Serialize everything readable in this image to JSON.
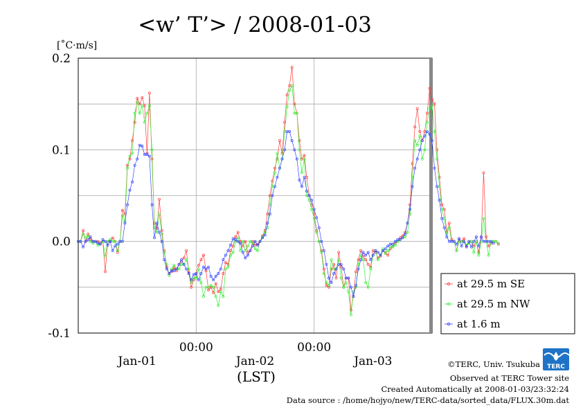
{
  "chart_data": {
    "type": "line",
    "title": "<w’ T’> / 2008-01-03",
    "unit_label": "[˚C·m/s]",
    "xlabel": "(LST)",
    "ylim": [
      -0.1,
      0.2
    ],
    "yticks": [
      "0.2",
      "0.1",
      "0.0",
      "-0.1"
    ],
    "xlim": [
      -36,
      36
    ],
    "xticks_time": [
      "00:00",
      "00:00"
    ],
    "xticks_date": [
      "Jan-01",
      "Jan-02",
      "Jan-03"
    ],
    "grid": true,
    "legend_position": "bottom-right outside",
    "x_step_hours": 0.5,
    "x_start_hour": -36,
    "series": [
      {
        "name": "at 29.5 m SE",
        "color": "#ff3b3b",
        "values": [
          0.0,
          0.0,
          0.012,
          0.0,
          0.008,
          0.002,
          0.0,
          0.0,
          0.0,
          -0.002,
          0.0,
          -0.033,
          0.0,
          0.0,
          0.004,
          0.0,
          -0.012,
          0.0,
          0.034,
          0.03,
          0.083,
          0.09,
          0.11,
          0.13,
          0.156,
          0.15,
          0.157,
          0.148,
          0.096,
          0.162,
          0.09,
          0.02,
          0.014,
          0.046,
          0.012,
          -0.01,
          -0.028,
          -0.035,
          -0.033,
          -0.029,
          -0.032,
          -0.025,
          -0.022,
          -0.018,
          -0.01,
          -0.034,
          -0.05,
          -0.042,
          -0.035,
          -0.026,
          -0.02,
          -0.015,
          -0.032,
          -0.053,
          -0.05,
          -0.056,
          -0.046,
          -0.055,
          -0.052,
          -0.035,
          -0.023,
          -0.025,
          -0.01,
          -0.005,
          0.005,
          0.01,
          0.0,
          -0.005,
          0.0,
          -0.012,
          -0.01,
          0.0,
          -0.004,
          -0.003,
          0.0,
          0.006,
          0.012,
          0.03,
          0.05,
          0.066,
          0.08,
          0.09,
          0.11,
          0.096,
          0.13,
          0.16,
          0.17,
          0.19,
          0.15,
          0.14,
          0.11,
          0.09,
          0.094,
          0.07,
          0.05,
          0.04,
          0.03,
          0.012,
          0.0,
          -0.01,
          -0.03,
          -0.048,
          -0.05,
          -0.03,
          -0.025,
          -0.04,
          -0.012,
          -0.028,
          -0.05,
          -0.04,
          -0.04,
          -0.075,
          -0.06,
          -0.033,
          -0.02,
          -0.01,
          -0.016,
          -0.02,
          -0.025,
          -0.028,
          -0.01,
          -0.012,
          -0.018,
          -0.016,
          -0.01,
          -0.012,
          -0.015,
          -0.008,
          -0.006,
          -0.002,
          0.0,
          0.004,
          0.006,
          0.01,
          0.02,
          0.04,
          0.085,
          0.125,
          0.145,
          0.12,
          0.11,
          0.12,
          0.14,
          0.167,
          0.155,
          0.15,
          0.1,
          0.07,
          0.04,
          0.035,
          0.01,
          0.02,
          0.002,
          0.0,
          -0.01,
          0.003,
          0.0,
          0.003,
          -0.005,
          0.0,
          0.0,
          -0.005,
          0.0,
          -0.012,
          0.005,
          0.075,
          0.005,
          -0.005,
          -0.002,
          0.0,
          0.0,
          -0.003
        ]
      },
      {
        "name": "at 29.5 m NW",
        "color": "#33ee33",
        "values": [
          0.0,
          0.0,
          0.008,
          0.004,
          0.006,
          0.0,
          -0.002,
          0.0,
          -0.004,
          -0.003,
          0.0,
          -0.016,
          0.0,
          0.002,
          0.0,
          0.0,
          -0.01,
          0.0,
          0.028,
          0.022,
          0.08,
          0.093,
          0.096,
          0.14,
          0.152,
          0.14,
          0.148,
          0.13,
          0.14,
          0.148,
          0.1,
          0.015,
          0.01,
          0.03,
          0.008,
          -0.012,
          -0.025,
          -0.037,
          -0.03,
          -0.026,
          -0.03,
          -0.03,
          -0.025,
          -0.025,
          -0.02,
          -0.03,
          -0.045,
          -0.04,
          -0.04,
          -0.03,
          -0.045,
          -0.06,
          -0.05,
          -0.05,
          -0.048,
          -0.05,
          -0.06,
          -0.07,
          -0.055,
          -0.06,
          -0.03,
          -0.028,
          -0.015,
          -0.012,
          0.0,
          0.004,
          -0.01,
          0.0,
          -0.01,
          -0.005,
          0.0,
          -0.002,
          -0.008,
          -0.01,
          0.0,
          0.005,
          0.01,
          0.015,
          0.04,
          0.06,
          0.075,
          0.096,
          0.08,
          0.09,
          0.12,
          0.147,
          0.165,
          0.17,
          0.14,
          0.14,
          0.1,
          0.075,
          0.09,
          0.05,
          0.045,
          0.035,
          0.025,
          0.01,
          0.0,
          -0.012,
          -0.035,
          -0.045,
          -0.048,
          -0.02,
          -0.03,
          -0.03,
          -0.02,
          -0.04,
          -0.05,
          -0.045,
          -0.055,
          -0.08,
          -0.055,
          -0.05,
          -0.025,
          -0.015,
          -0.02,
          -0.045,
          -0.05,
          -0.03,
          -0.015,
          -0.01,
          -0.02,
          -0.015,
          -0.008,
          -0.013,
          -0.01,
          -0.006,
          -0.006,
          -0.004,
          0.0,
          0.002,
          0.004,
          0.005,
          0.01,
          0.03,
          0.07,
          0.11,
          0.105,
          0.115,
          0.09,
          0.1,
          0.13,
          0.145,
          0.148,
          0.12,
          0.09,
          0.06,
          0.035,
          0.025,
          0.008,
          0.015,
          0.0,
          0.0,
          -0.01,
          0.0,
          0.0,
          0.0,
          -0.004,
          -0.002,
          0.0,
          -0.012,
          0.0,
          -0.015,
          0.0,
          0.025,
          0.0,
          -0.015,
          0.0,
          0.0,
          0.0,
          -0.002
        ]
      },
      {
        "name": "at 1.6 m",
        "color": "#3344ff",
        "values": [
          0.0,
          0.0,
          -0.006,
          0.0,
          0.002,
          0.005,
          0.0,
          0.0,
          -0.002,
          -0.003,
          0.002,
          0.0,
          -0.004,
          0.0,
          -0.01,
          -0.005,
          -0.003,
          0.0,
          0.0,
          0.02,
          0.04,
          0.056,
          0.065,
          0.083,
          0.09,
          0.105,
          0.104,
          0.095,
          0.095,
          0.093,
          0.04,
          0.004,
          0.02,
          0.01,
          0.0,
          -0.02,
          -0.03,
          -0.035,
          -0.032,
          -0.032,
          -0.03,
          -0.025,
          -0.02,
          -0.025,
          -0.03,
          -0.035,
          -0.042,
          -0.036,
          -0.035,
          -0.042,
          -0.035,
          -0.028,
          -0.03,
          -0.028,
          -0.038,
          -0.042,
          -0.038,
          -0.035,
          -0.03,
          -0.02,
          -0.015,
          -0.01,
          -0.004,
          0.003,
          0.002,
          0.0,
          -0.002,
          -0.012,
          -0.018,
          -0.015,
          -0.01,
          -0.005,
          0.0,
          -0.004,
          0.0,
          0.004,
          0.007,
          0.02,
          0.03,
          0.05,
          0.06,
          0.07,
          0.08,
          0.09,
          0.1,
          0.12,
          0.12,
          0.11,
          0.1,
          0.09,
          0.067,
          0.06,
          0.07,
          0.055,
          0.05,
          0.045,
          0.035,
          0.026,
          0.015,
          0.0,
          -0.01,
          -0.025,
          -0.04,
          -0.045,
          -0.035,
          -0.03,
          -0.025,
          -0.025,
          -0.03,
          -0.04,
          -0.04,
          -0.05,
          -0.06,
          -0.048,
          -0.03,
          -0.02,
          -0.012,
          -0.015,
          -0.012,
          -0.02,
          -0.015,
          -0.01,
          -0.012,
          -0.015,
          -0.01,
          -0.008,
          -0.005,
          -0.003,
          -0.003,
          0.0,
          0.002,
          0.002,
          0.004,
          0.008,
          0.02,
          0.035,
          0.06,
          0.08,
          0.09,
          0.1,
          0.11,
          0.115,
          0.12,
          0.117,
          0.11,
          0.08,
          0.06,
          0.045,
          0.025,
          0.015,
          0.005,
          0.0,
          0.0,
          0.0,
          -0.003,
          0.003,
          -0.005,
          0.0,
          -0.006,
          0.0,
          -0.006,
          0.0,
          0.005,
          -0.005,
          0.005,
          0.0,
          0.0,
          0.0,
          0.0,
          -0.002
        ]
      }
    ]
  },
  "footer": {
    "copyright": "©TERC, Univ. Tsukuba",
    "observed": "Observed at TERC Tower site",
    "created": "Created Automatically at 2008-01-03/23:32:24",
    "datasource": "Data source : /home/hojyo/new/TERC-data/sorted_data/FLUX.30m.dat"
  },
  "logo": {
    "text": "TERC"
  }
}
